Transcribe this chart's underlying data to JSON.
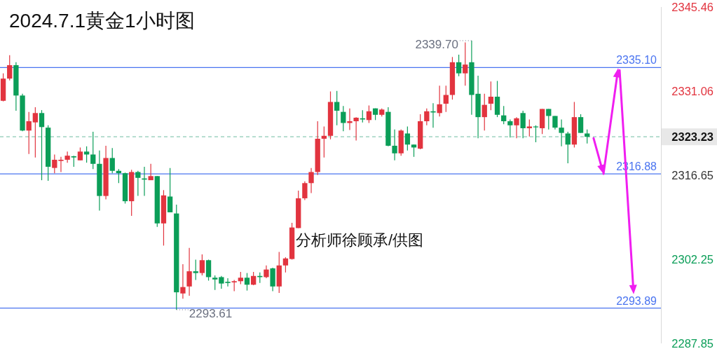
{
  "chart_data": {
    "type": "candlestick",
    "title": "2024.7.1黄金1小时图",
    "categories": [
      null,
      null,
      null,
      null,
      null,
      null,
      null,
      null,
      null,
      null,
      null,
      null,
      null,
      null,
      null,
      null,
      null,
      null,
      null,
      null,
      null,
      null,
      null,
      null,
      null,
      null,
      null,
      null,
      null,
      null,
      null,
      null,
      null,
      null,
      null,
      null,
      null,
      null,
      null,
      null,
      null,
      null,
      null,
      null,
      null,
      null,
      null,
      null,
      null,
      null,
      null,
      null,
      null,
      null,
      null,
      null,
      null,
      null,
      null,
      null,
      null,
      null,
      null,
      null,
      null,
      null,
      null,
      null,
      null,
      null,
      null,
      null,
      null,
      null,
      null,
      null,
      null,
      null,
      null,
      null,
      null,
      null,
      null,
      null,
      null,
      null,
      null,
      null,
      null,
      null,
      null,
      null,
      null,
      null,
      null,
      null,
      null,
      null,
      null,
      null,
      null,
      null,
      null
    ],
    "ohlc": [
      [
        2329.4,
        2334.1,
        2329.3,
        2333.2
      ],
      [
        2333.2,
        2337.2,
        2332.9,
        2335.5
      ],
      [
        2335.5,
        2336.0,
        2327.7,
        2330.3
      ],
      [
        2330.3,
        2330.6,
        2324.2,
        2324.3
      ],
      [
        2324.3,
        2327.5,
        2320.3,
        2325.9
      ],
      [
        2325.7,
        2328.3,
        2319.7,
        2327.3
      ],
      [
        2327.3,
        2327.8,
        2315.8,
        2324.9
      ],
      [
        2324.8,
        2325.2,
        2315.7,
        2318.1
      ],
      [
        2317.9,
        2320.2,
        2317.0,
        2319.3
      ],
      [
        2319.1,
        2319.8,
        2317.2,
        2319.3
      ],
      [
        2319.3,
        2320.7,
        2318.8,
        2320.0
      ],
      [
        2319.9,
        2320.0,
        2318.1,
        2319.7
      ],
      [
        2319.2,
        2321.4,
        2319.2,
        2320.7
      ],
      [
        2320.7,
        2321.6,
        2318.8,
        2320.2
      ],
      [
        2320.2,
        2324.1,
        2317.7,
        2318.6
      ],
      [
        2318.6,
        2320.9,
        2310.6,
        2313.1
      ],
      [
        2313.1,
        2321.7,
        2312.5,
        2319.6
      ],
      [
        2319.6,
        2321.3,
        2317.0,
        2317.4
      ],
      [
        2317.4,
        2317.7,
        2315.3,
        2317.0
      ],
      [
        2317.0,
        2317.1,
        2311.8,
        2312.2
      ],
      [
        2312.2,
        2317.6,
        2309.7,
        2317.2
      ],
      [
        2317.2,
        2317.4,
        2313.1,
        2316.2
      ],
      [
        2316.1,
        2318.1,
        2313.1,
        2315.9
      ],
      [
        2315.8,
        2318.6,
        2315.8,
        2316.5
      ],
      [
        2316.5,
        2316.5,
        2307.8,
        2308.4
      ],
      [
        2308.4,
        2314.1,
        2304.6,
        2313.2
      ],
      [
        2313.0,
        2317.9,
        2310.3,
        2310.3
      ],
      [
        2310.1,
        2311.6,
        2293.61,
        2296.6
      ],
      [
        2296.4,
        2301.4,
        2295.5,
        2297.5
      ],
      [
        2297.6,
        2304.2,
        2296.0,
        2300.2
      ],
      [
        2300.2,
        2302.2,
        2298.7,
        2299.9
      ],
      [
        2299.9,
        2303.1,
        2299.5,
        2302.1
      ],
      [
        2302.1,
        2302.2,
        2298.6,
        2299.2
      ],
      [
        2299.1,
        2299.5,
        2297.0,
        2298.8
      ],
      [
        2299.2,
        2299.4,
        2297.2,
        2298.1
      ],
      [
        2298.4,
        2299.0,
        2297.6,
        2298.2
      ],
      [
        2298.3,
        2298.7,
        2296.8,
        2298.5
      ],
      [
        2298.5,
        2300.1,
        2298.0,
        2299.1
      ],
      [
        2299.1,
        2299.9,
        2296.9,
        2297.9
      ],
      [
        2297.9,
        2300.1,
        2297.8,
        2299.4
      ],
      [
        2299.4,
        2300.0,
        2298.2,
        2299.2
      ],
      [
        2299.2,
        2301.2,
        2299.0,
        2300.5
      ],
      [
        2300.7,
        2300.8,
        2296.8,
        2297.6
      ],
      [
        2297.6,
        2303.5,
        2296.5,
        2301.2
      ],
      [
        2301.2,
        2302.6,
        2300.0,
        2302.4
      ],
      [
        2302.3,
        2308.5,
        2302.2,
        2307.7
      ],
      [
        2307.6,
        2314.0,
        2307.6,
        2312.7
      ],
      [
        2312.7,
        2315.6,
        2312.4,
        2315.3
      ],
      [
        2315.3,
        2317.9,
        2313.6,
        2317.2
      ],
      [
        2317.2,
        2325.9,
        2316.7,
        2322.9
      ],
      [
        2322.9,
        2325.0,
        2319.7,
        2323.4
      ],
      [
        2323.4,
        2331.0,
        2322.8,
        2329.2
      ],
      [
        2329.2,
        2331.1,
        2325.2,
        2327.7
      ],
      [
        2327.5,
        2328.5,
        2324.2,
        2325.6
      ],
      [
        2325.6,
        2328.1,
        2324.4,
        2325.9
      ],
      [
        2325.9,
        2326.6,
        2322.6,
        2326.5
      ],
      [
        2326.4,
        2327.8,
        2325.7,
        2326.2
      ],
      [
        2326.1,
        2328.6,
        2325.6,
        2327.6
      ],
      [
        2328.1,
        2328.1,
        2326.1,
        2327.0
      ],
      [
        2327.0,
        2328.1,
        2326.7,
        2327.9
      ],
      [
        2327.5,
        2328.3,
        2321.6,
        2321.7
      ],
      [
        2321.7,
        2324.5,
        2319.2,
        2320.4
      ],
      [
        2320.4,
        2324.5,
        2320.0,
        2324.3
      ],
      [
        2323.8,
        2325.0,
        2320.9,
        2321.9
      ],
      [
        2321.9,
        2321.9,
        2319.8,
        2321.4
      ],
      [
        2321.2,
        2327.1,
        2321.1,
        2325.9
      ],
      [
        2325.9,
        2328.1,
        2325.2,
        2327.6
      ],
      [
        2327.6,
        2329.0,
        2324.8,
        2327.4
      ],
      [
        2327.3,
        2332.0,
        2326.7,
        2328.8
      ],
      [
        2328.9,
        2332.0,
        2327.5,
        2330.4
      ],
      [
        2330.4,
        2336.9,
        2329.6,
        2336.0
      ],
      [
        2336.0,
        2337.3,
        2333.6,
        2334.1
      ],
      [
        2334.1,
        2339.4,
        2332.0,
        2335.6
      ],
      [
        2336.0,
        2339.7,
        2327.0,
        2330.4
      ],
      [
        2330.6,
        2333.7,
        2323.0,
        2326.6
      ],
      [
        2326.6,
        2330.6,
        2324.3,
        2328.7
      ],
      [
        2328.9,
        2332.7,
        2327.8,
        2330.1
      ],
      [
        2330.1,
        2332.8,
        2326.6,
        2327.0
      ],
      [
        2326.9,
        2328.5,
        2325.4,
        2325.9
      ],
      [
        2325.9,
        2326.2,
        2323.1,
        2325.2
      ],
      [
        2325.2,
        2326.6,
        2323.0,
        2326.4
      ],
      [
        2327.3,
        2327.7,
        2323.0,
        2324.7
      ],
      [
        2324.7,
        2326.2,
        2323.3,
        2325.0
      ],
      [
        2325.0,
        2325.2,
        2322.3,
        2324.9
      ],
      [
        2324.7,
        2328.0,
        2323.7,
        2328.0
      ],
      [
        2328.0,
        2328.0,
        2324.5,
        2326.8
      ],
      [
        2326.8,
        2326.8,
        2324.5,
        2324.8
      ],
      [
        2324.8,
        2326.2,
        2321.6,
        2323.9
      ],
      [
        2323.8,
        2324.1,
        2318.7,
        2321.9
      ],
      [
        2321.9,
        2329.2,
        2321.4,
        2326.6
      ],
      [
        2326.6,
        2327.1,
        2323.9,
        2323.9
      ],
      [
        2323.8,
        2324.5,
        2322.1,
        2323.23
      ],
      null,
      null,
      null,
      null,
      null,
      null,
      null,
      null,
      null,
      null,
      null
    ],
    "colors": [
      "#e2343f",
      "#e2343f",
      "#0b9e58",
      "#0b9e58",
      "#e2343f",
      "#e2343f",
      "#0b9e58",
      "#0b9e58",
      "#e2343f",
      "#e2343f",
      "#e2343f",
      "#0b9e58",
      "#e2343f",
      "#0b9e58",
      "#0b9e58",
      "#0b9e58",
      "#e2343f",
      "#0b9e58",
      "#0b9e58",
      "#0b9e58",
      "#e2343f",
      "#0b9e58",
      "#0b9e58",
      "#e2343f",
      "#0b9e58",
      "#e2343f",
      "#0b9e58",
      "#0b9e58",
      "#e2343f",
      "#e2343f",
      "#0b9e58",
      "#e2343f",
      "#0b9e58",
      "#0b9e58",
      "#0b9e58",
      "#0b9e58",
      "#e2343f",
      "#e2343f",
      "#0b9e58",
      "#e2343f",
      "#0b9e58",
      "#e2343f",
      "#0b9e58",
      "#e2343f",
      "#e2343f",
      "#e2343f",
      "#e2343f",
      "#e2343f",
      "#e2343f",
      "#e2343f",
      "#e2343f",
      "#e2343f",
      "#0b9e58",
      "#0b9e58",
      "#e2343f",
      "#e2343f",
      "#0b9e58",
      "#e2343f",
      "#0b9e58",
      "#e2343f",
      "#0b9e58",
      "#0b9e58",
      "#e2343f",
      "#0b9e58",
      "#0b9e58",
      "#e2343f",
      "#e2343f",
      "#0b9e58",
      "#e2343f",
      "#e2343f",
      "#e2343f",
      "#0b9e58",
      "#e2343f",
      "#0b9e58",
      "#0b9e58",
      "#e2343f",
      "#e2343f",
      "#0b9e58",
      "#0b9e58",
      "#0b9e58",
      "#e2343f",
      "#0b9e58",
      "#e2343f",
      "#0b9e58",
      "#e2343f",
      "#0b9e58",
      "#0b9e58",
      "#0b9e58",
      "#0b9e58",
      "#e2343f",
      "#0b9e58",
      "#0b9e58",
      null,
      null,
      null,
      null,
      null,
      null,
      null,
      null,
      null,
      null,
      null
    ],
    "ylim": [
      2287.85,
      2345.46
    ],
    "yticks": [
      2287.85,
      2302.25,
      2316.65,
      2331.06,
      2345.46
    ],
    "tick_labels": "y",
    "ref_lines": [
      {
        "axis": "y",
        "value": 2335.1,
        "label": "2335.10",
        "color": "#4a74f0"
      },
      {
        "axis": "y",
        "value": 2316.88,
        "label": "2316.88",
        "color": "#4a74f0"
      },
      {
        "axis": "y",
        "value": 2293.89,
        "label": "2293.89",
        "color": "#4a74f0"
      },
      {
        "axis": "y",
        "value": 2323.23,
        "label": "2323.23",
        "color": "#8ccab5",
        "line_style": "dashed"
      }
    ],
    "annotations": [
      "2339.70",
      "2293.61",
      "分析师徐顾承/供图"
    ]
  }
}
